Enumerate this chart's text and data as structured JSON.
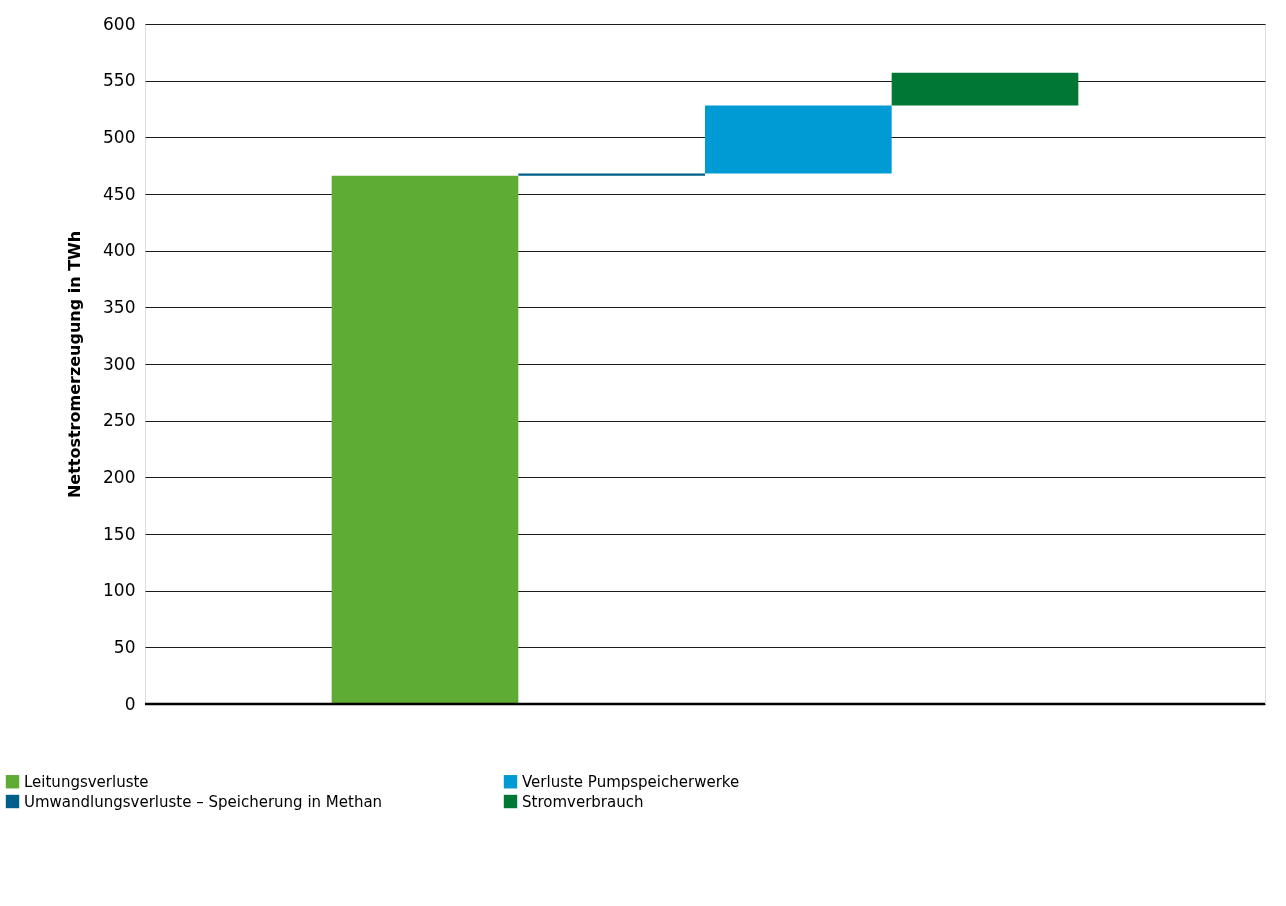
{
  "chart_data": {
    "type": "bar",
    "ylabel": "Nettostromerzeugung in TWh",
    "categories": [
      null,
      null,
      null,
      null
    ],
    "series": [
      {
        "name": "Leitungsverluste",
        "color": "#5eac33",
        "values": [
          466,
          null,
          null,
          null
        ],
        "base": [
          0,
          null,
          null,
          null
        ]
      },
      {
        "name": "Umwandlungsverluste – Speicherung in Methan",
        "color": "#005f8a",
        "values": [
          null,
          2,
          null,
          null
        ],
        "base": [
          null,
          466,
          null,
          null
        ]
      },
      {
        "name": "Verluste Pumpspeicherwerke",
        "color": "#009bd5",
        "values": [
          null,
          null,
          60,
          null
        ],
        "base": [
          null,
          null,
          468,
          null
        ]
      },
      {
        "name": "Stromverbrauch",
        "color": "#007734",
        "values": [
          null,
          null,
          null,
          29
        ],
        "base": [
          null,
          null,
          null,
          528
        ]
      }
    ],
    "ylim": [
      0,
      600
    ],
    "yticks": [
      0,
      50,
      100,
      150,
      200,
      250,
      300,
      350,
      400,
      450,
      500,
      550,
      600
    ],
    "grid": "y",
    "legend": "bottom left",
    "tick_labels": "y"
  }
}
